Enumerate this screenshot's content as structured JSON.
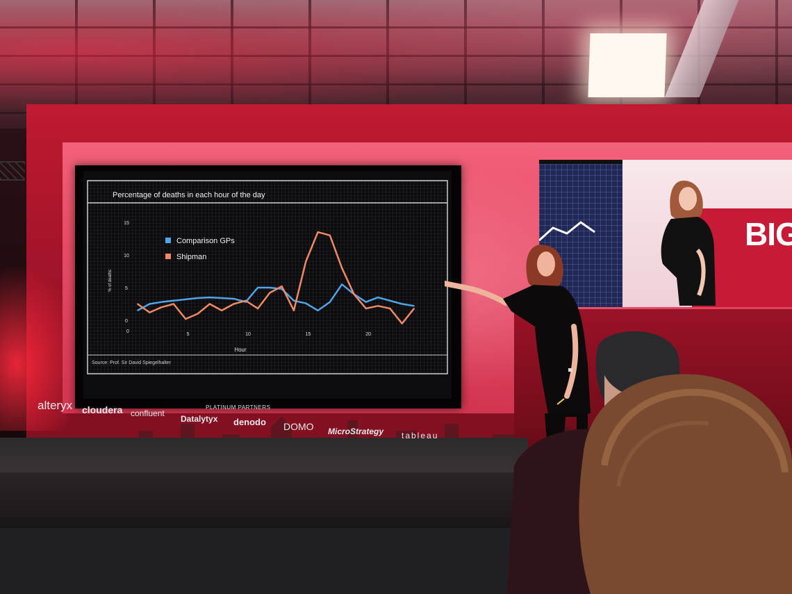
{
  "slide": {
    "title": "Percentage of deaths in each hour of the day",
    "source": "Source: Prof. Sir David Spiegelhalter",
    "legend_gp": "Comparison GPs",
    "legend_shipman": "Shipman",
    "y_axis_label": "% of deaths",
    "x_axis_label": "Hour",
    "y_ticks": [
      "15",
      "10",
      "5",
      "0"
    ],
    "x_ticks": [
      "0",
      "5",
      "10",
      "15",
      "20"
    ],
    "colors": {
      "gp": "#4fa6e8",
      "shipman": "#f08a64",
      "background": "#0c0b0d"
    }
  },
  "chart_data": {
    "type": "line",
    "title": "Percentage of deaths in each hour of the day",
    "xlabel": "Hour",
    "ylabel": "% of deaths",
    "x": [
      0,
      1,
      2,
      3,
      4,
      5,
      6,
      7,
      8,
      9,
      10,
      11,
      12,
      13,
      14,
      15,
      16,
      17,
      18,
      19,
      20,
      21,
      22,
      23
    ],
    "ylim": [
      0,
      15
    ],
    "xlim": [
      0,
      23
    ],
    "series": [
      {
        "name": "Comparison GPs",
        "color": "#4fa6e8",
        "values": [
          1.5,
          2.5,
          2.8,
          3.0,
          3.2,
          3.4,
          3.5,
          3.4,
          3.3,
          2.8,
          5.0,
          5.0,
          4.8,
          3.0,
          2.6,
          1.5,
          2.8,
          5.5,
          4.0,
          2.8,
          3.5,
          3.0,
          2.5,
          2.2
        ]
      },
      {
        "name": "Shipman",
        "color": "#f08a64",
        "values": [
          2.5,
          1.2,
          2.0,
          2.5,
          0.2,
          1.0,
          2.5,
          1.5,
          2.5,
          3.0,
          1.8,
          4.2,
          5.2,
          1.5,
          9.0,
          13.5,
          13.0,
          8.0,
          4.0,
          1.8,
          2.2,
          1.8,
          -0.5,
          1.8
        ]
      }
    ],
    "legend_position": "top-left",
    "grid": true
  },
  "stage": {
    "partners_title": "PLATINUM PARTNERS",
    "logos": {
      "alteryx": "alteryx",
      "cloudera": "cloudera",
      "confluent": "confluent",
      "datalytyx": "Datalytyx",
      "denodo": "denodo",
      "domo": "DOMO",
      "microstrategy": "MicroStrategy",
      "tableau": "tableau"
    },
    "video_text": "BIG"
  }
}
